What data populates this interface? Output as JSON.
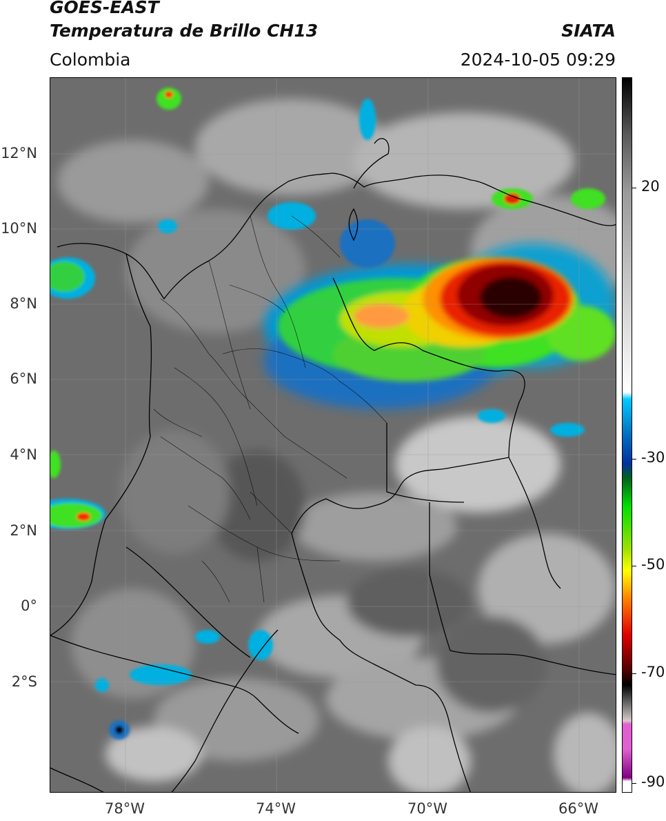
{
  "header": {
    "satellite": "GOES-EAST",
    "product": "Temperatura de Brillo CH13",
    "region": "Colombia",
    "agency": "SIATA",
    "datetime": "2024-10-05 09:29"
  },
  "map": {
    "lat_ticks": [
      "12°N",
      "10°N",
      "8°N",
      "6°N",
      "4°N",
      "2°N",
      "0°",
      "2°S"
    ],
    "lon_ticks": [
      "78°W",
      "74°W",
      "70°W",
      "66°W"
    ]
  },
  "colorbar": {
    "ticks": [
      "20",
      "-30",
      "-50",
      "-70",
      "-90"
    ],
    "colors": {
      "warm_gray": "#ffffff",
      "cyan": "#00c8ff",
      "blue": "#0030a0",
      "green": "#00e000",
      "yellow": "#ffff00",
      "orange": "#ff8000",
      "red": "#e00000",
      "dark_red": "#500000",
      "black": "#000000",
      "magenta": "#e060d0",
      "purple": "#800080"
    }
  }
}
